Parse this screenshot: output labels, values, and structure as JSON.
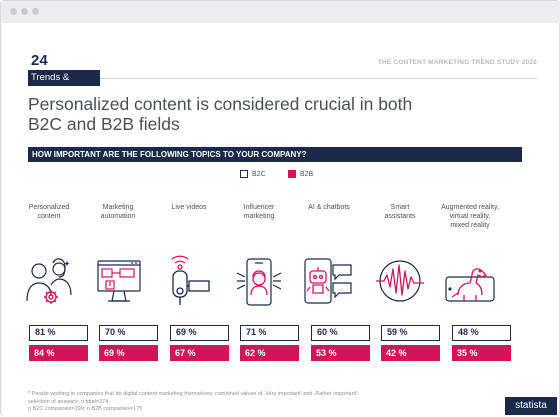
{
  "page": {
    "number": "24",
    "section": "Trends & Opinions",
    "study_title": "THE CONTENT MARKETING TREND STUDY 2020",
    "headline_line1": "Personalized content is considered crucial in both",
    "headline_line2": "B2C and B2B fields",
    "question": "HOW IMPORTANT ARE THE FOLLOWING TOPICS TO YOUR COMPANY?"
  },
  "legend": {
    "b2c": "B2C",
    "b2b": "B2B"
  },
  "colors": {
    "navy": "#1b2a4a",
    "magenta": "#d4145a"
  },
  "topics": [
    {
      "label_line1": "Personalized",
      "label_line2": "content",
      "label_line3": "",
      "icon": "people-gear-icon",
      "b2c": "81 %",
      "b2b": "84 %"
    },
    {
      "label_line1": "Marketing",
      "label_line2": "automation",
      "label_line3": "",
      "icon": "monitor-workflow-icon",
      "b2c": "70 %",
      "b2b": "69 %"
    },
    {
      "label_line1": "Live videos",
      "label_line2": "",
      "label_line3": "",
      "icon": "video-camera-icon",
      "b2c": "69 %",
      "b2b": "67 %"
    },
    {
      "label_line1": "Influencer",
      "label_line2": "marketing",
      "label_line3": "",
      "icon": "smartphone-influencer-icon",
      "b2c": "71 %",
      "b2b": "62 %"
    },
    {
      "label_line1": "AI & chatbots",
      "label_line2": "",
      "label_line3": "",
      "icon": "robot-chat-icon",
      "b2c": "60 %",
      "b2b": "53 %"
    },
    {
      "label_line1": "Smart",
      "label_line2": "assistants",
      "label_line3": "",
      "icon": "soundwave-icon",
      "b2c": "59 %",
      "b2b": "42 %"
    },
    {
      "label_line1": "Augmented reality,",
      "label_line2": "virtual reality,",
      "label_line3": "mixed reality",
      "icon": "tablet-dinosaur-icon",
      "b2c": "48 %",
      "b2b": "35 %"
    }
  ],
  "footnote": {
    "line1": "* People working in companies that do digital content marketing themselves; combined values of ‚Very important' and ‚Rather important'; selection of answers; n total=374;",
    "line2": "n B2C companies=199; n B2B companies=175"
  },
  "brand": "statista"
}
